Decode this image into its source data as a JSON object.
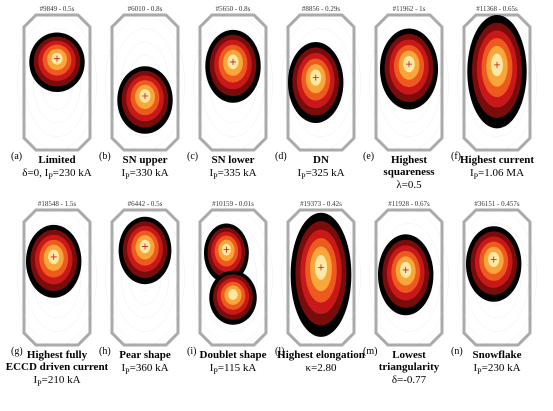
{
  "panels": [
    {
      "shot": "#9849 - 0.5s",
      "letter": "(a)",
      "title": [
        "Limited"
      ],
      "param": [
        "δ=0, I",
        "P",
        "=230 kA"
      ]
    },
    {
      "shot": "#6010 - 0.8s",
      "letter": "(b)",
      "title": [
        "SN upper"
      ],
      "param": [
        "I",
        "P",
        "=330 kA"
      ]
    },
    {
      "shot": "#5650 - 0.8s",
      "letter": "(c)",
      "title": [
        "SN lower"
      ],
      "param": [
        "I",
        "P",
        "=335 kA"
      ]
    },
    {
      "shot": "#8856 - 0.29s",
      "letter": "(d)",
      "title": [
        "DN"
      ],
      "param": [
        "I",
        "P",
        "=325 kA"
      ]
    },
    {
      "shot": "#11962 - 1s",
      "letter": "(e)",
      "title": [
        "Highest",
        "squareness"
      ],
      "param": [
        "λ=0.5"
      ]
    },
    {
      "shot": "#11368 - 0.65s",
      "letter": "(f)",
      "title": [
        "Highest current"
      ],
      "param": [
        "I",
        "P",
        "=1.06 MA"
      ]
    },
    {
      "shot": "#18548 - 1.5s",
      "letter": "(g)",
      "title": [
        "Highest fully",
        "ECCD driven current"
      ],
      "param": [
        "I",
        "P",
        "=210 kA"
      ]
    },
    {
      "shot": "#6442 - 0.5s",
      "letter": "(h)",
      "title": [
        "Pear shape"
      ],
      "param": [
        "I",
        "P",
        "=360 kA"
      ]
    },
    {
      "shot": "#10159 - 0.01s",
      "letter": "(i)",
      "title": [
        "Doublet shape"
      ],
      "param": [
        "I",
        "P",
        "=115 kA"
      ]
    },
    {
      "shot": "#19373 - 0.42s",
      "letter": "(l)",
      "title": [
        "Highest elongation"
      ],
      "param": [
        "κ=2.80"
      ]
    },
    {
      "shot": "#11928 - 0.67s",
      "letter": "(m)",
      "title": [
        "Lowest",
        "triangularity"
      ],
      "param": [
        "δ=-0.77"
      ]
    },
    {
      "shot": "#36151 - 0.457s",
      "letter": "(n)",
      "title": [
        "Snowflake"
      ],
      "param": [
        "I",
        "P",
        "=230 kA"
      ]
    }
  ]
}
